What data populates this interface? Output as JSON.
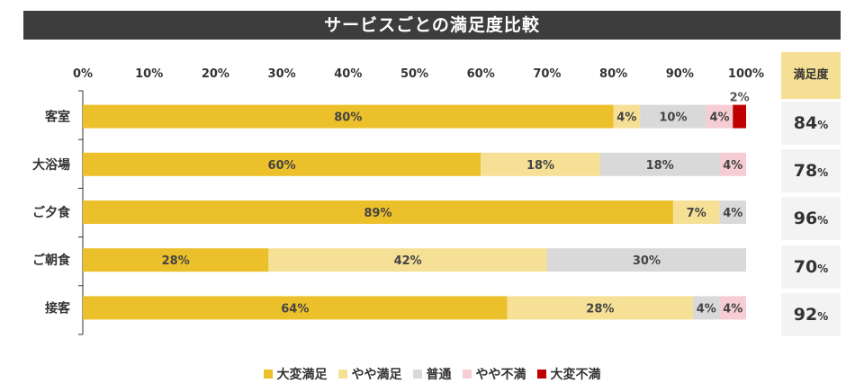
{
  "title": "サービスごとの満足度比較",
  "chart_data": {
    "type": "bar",
    "orientation": "horizontal",
    "stacked": true,
    "title": "サービスごとの満足度比較",
    "x_ticks": [
      "0%",
      "10%",
      "20%",
      "30%",
      "40%",
      "50%",
      "60%",
      "70%",
      "80%",
      "90%",
      "100%"
    ],
    "xlim": [
      0,
      100
    ],
    "categories": [
      "客室",
      "大浴場",
      "ご夕食",
      "ご朝食",
      "接客"
    ],
    "series": [
      {
        "name": "大変満足",
        "color": "#ecc02a",
        "values": [
          80,
          60,
          89,
          28,
          64
        ],
        "labels": [
          "80%",
          "60%",
          "89%",
          "28%",
          "64%"
        ]
      },
      {
        "name": "やや満足",
        "color": "#f6e096",
        "values": [
          4,
          18,
          7,
          42,
          28
        ],
        "labels": [
          "4%",
          "18%",
          "7%",
          "42%",
          "28%"
        ]
      },
      {
        "name": "普通",
        "color": "#d9d9d9",
        "values": [
          10,
          18,
          4,
          30,
          4
        ],
        "labels": [
          "10%",
          "18%",
          "4%",
          "30%",
          "4%"
        ]
      },
      {
        "name": "やや不満",
        "color": "#f6cdd2",
        "values": [
          4,
          4,
          0,
          0,
          4
        ],
        "labels": [
          "4%",
          "4%",
          "",
          "",
          "4%"
        ]
      },
      {
        "name": "大変不満",
        "color": "#c00000",
        "values": [
          2,
          0,
          0,
          0,
          0
        ],
        "labels": [
          "2%",
          "",
          "",
          "",
          ""
        ]
      }
    ],
    "legend_position": "bottom"
  },
  "satisfaction": {
    "header": "満足度",
    "values": [
      "84",
      "78",
      "96",
      "70",
      "92"
    ],
    "unit": "%"
  }
}
